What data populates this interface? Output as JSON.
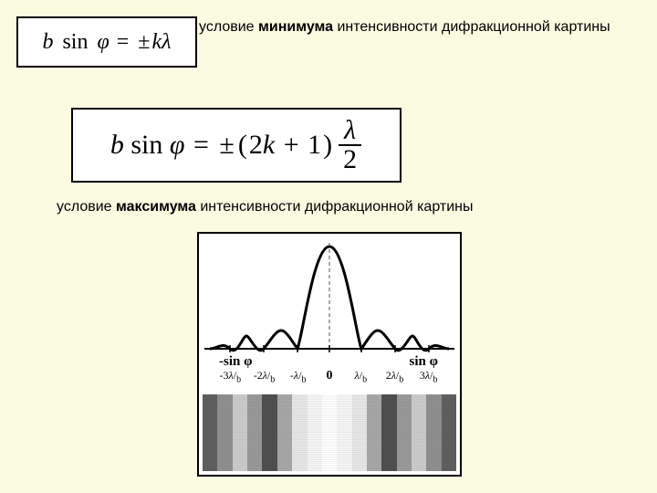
{
  "labels": {
    "minimum_text_1": "условие ",
    "minimum_bold": "минимума",
    "minimum_text_2": " интенсивности дифракционной картины",
    "maximum_text_1": "условие ",
    "maximum_bold": "максимума",
    "maximum_text_2": " интенсивности дифракционной картины"
  },
  "equations": {
    "eq1": {
      "lhs_b": "b",
      "lhs_sin": "sin",
      "lhs_phi": "φ",
      "eq": "=",
      "pm": "±",
      "k": "k",
      "lambda": "λ"
    },
    "eq2": {
      "lhs_b": "b",
      "lhs_sin": "sin",
      "lhs_phi": "φ",
      "eq": "=",
      "pm": "±",
      "paren_l": "(",
      "term_2k": "2",
      "term_k": "k",
      "plus": "+",
      "term_1": "1",
      "paren_r": ")",
      "frac_num": "λ",
      "frac_den": "2"
    }
  },
  "figure": {
    "sin_left": "-sin φ",
    "sin_right": "sin φ",
    "zero": "0",
    "ticks_left": [
      "-3λ/b",
      "-2λ/b",
      "-λ/b"
    ],
    "ticks_right": [
      "λ/b",
      "2λ/b",
      "3λ/b"
    ],
    "curve": {
      "stroke": "#000000",
      "stroke_width": 3,
      "dash_stroke": "#555555"
    },
    "band_colors": [
      "#606060",
      "#909090",
      "#cccccc",
      "#9a9a9a",
      "#505050",
      "#a8a8a8",
      "#e8e8e8",
      "#f6f6f6",
      "#ffffff",
      "#f6f6f6",
      "#e8e8e8",
      "#a8a8a8",
      "#505050",
      "#9a9a9a",
      "#cccccc",
      "#909090",
      "#606060"
    ],
    "tick_positions_pct": [
      12,
      25,
      38,
      50,
      62,
      75,
      88
    ]
  }
}
